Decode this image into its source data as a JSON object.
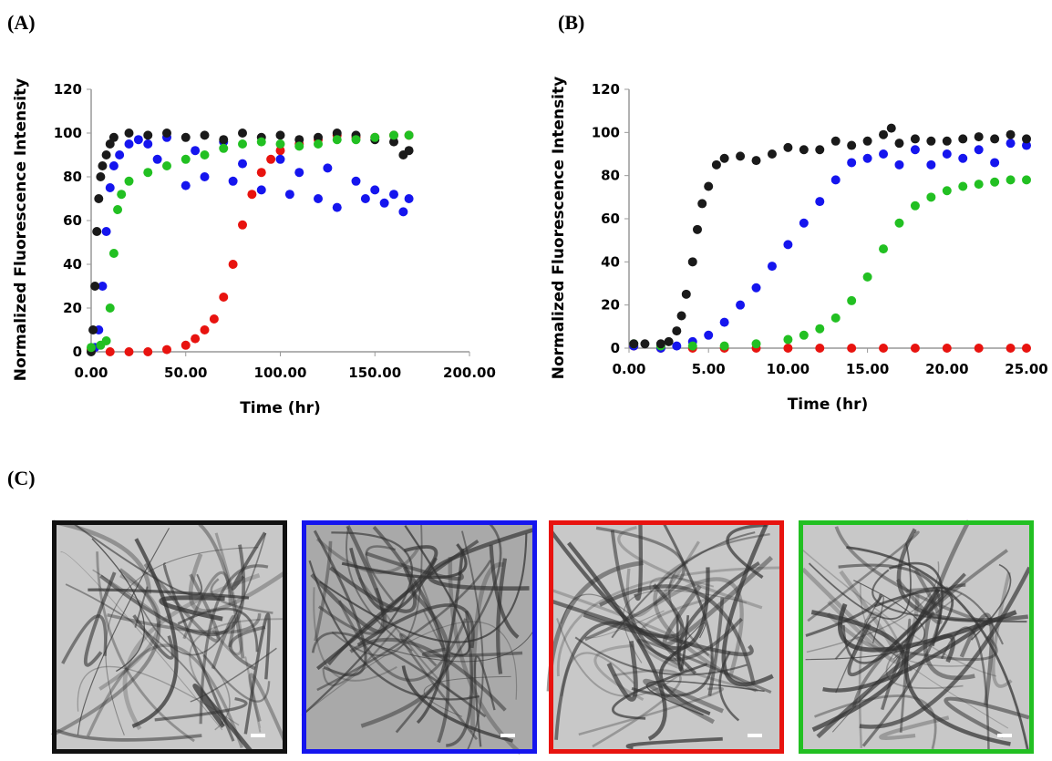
{
  "figure_labels": [
    "(A)",
    "(B)",
    "(C)"
  ],
  "chart_data": [
    {
      "type": "scatter",
      "xlabel": "Time (hr)",
      "ylabel": "Normalized Fluorescence Intensity",
      "xlim": [
        0,
        200
      ],
      "ylim": [
        0,
        120
      ],
      "xticks": [
        {
          "value": 0,
          "label": "0.00"
        },
        {
          "value": 50,
          "label": "50.00"
        },
        {
          "value": 100,
          "label": "100.00"
        },
        {
          "value": 150,
          "label": "150.00"
        },
        {
          "value": 200,
          "label": "200.00"
        }
      ],
      "yticks": [
        0,
        20,
        40,
        60,
        80,
        100,
        120
      ],
      "series": [
        {
          "color": "#e8130f",
          "x": [
            0,
            10,
            20,
            30,
            40,
            50,
            55,
            60,
            65,
            70,
            75,
            80,
            85,
            90,
            95,
            100,
            110,
            120,
            130,
            140,
            150,
            160,
            168
          ],
          "values": [
            1,
            0,
            0,
            0,
            1,
            3,
            6,
            10,
            15,
            25,
            40,
            58,
            72,
            82,
            88,
            92,
            95,
            97,
            99,
            98,
            98,
            99,
            99
          ]
        },
        {
          "color": "#1515ee",
          "x": [
            2,
            4,
            6,
            8,
            10,
            12,
            15,
            20,
            25,
            30,
            35,
            40,
            50,
            55,
            60,
            70,
            75,
            80,
            90,
            100,
            105,
            110,
            120,
            125,
            130,
            140,
            145,
            150,
            155,
            160,
            165,
            168
          ],
          "values": [
            2,
            10,
            30,
            55,
            75,
            85,
            90,
            95,
            97,
            95,
            88,
            98,
            76,
            92,
            80,
            96,
            78,
            86,
            74,
            88,
            72,
            82,
            70,
            84,
            66,
            78,
            70,
            74,
            68,
            72,
            64,
            70
          ]
        },
        {
          "color": "#1a1a1a",
          "x": [
            0,
            1,
            2,
            3,
            4,
            5,
            6,
            8,
            10,
            12,
            20,
            30,
            40,
            50,
            60,
            70,
            80,
            90,
            100,
            110,
            120,
            130,
            140,
            150,
            160,
            165,
            168
          ],
          "values": [
            0,
            10,
            30,
            55,
            70,
            80,
            85,
            90,
            95,
            98,
            100,
            99,
            100,
            98,
            99,
            97,
            100,
            98,
            99,
            97,
            98,
            100,
            99,
            97,
            96,
            90,
            92
          ]
        },
        {
          "color": "#22c022",
          "x": [
            0,
            5,
            8,
            10,
            12,
            14,
            16,
            20,
            30,
            40,
            50,
            60,
            70,
            80,
            90,
            100,
            110,
            120,
            130,
            140,
            150,
            160,
            168
          ],
          "values": [
            2,
            3,
            5,
            20,
            45,
            65,
            72,
            78,
            82,
            85,
            88,
            90,
            93,
            95,
            96,
            95,
            94,
            95,
            97,
            97,
            98,
            99,
            99
          ]
        }
      ]
    },
    {
      "type": "scatter",
      "xlabel": "Time (hr)",
      "ylabel": "Normalized Fluorescence Intensity",
      "xlim": [
        0,
        25
      ],
      "ylim": [
        0,
        120
      ],
      "xticks": [
        {
          "value": 0,
          "label": "0.00"
        },
        {
          "value": 5,
          "label": "5.00"
        },
        {
          "value": 10,
          "label": "10.00"
        },
        {
          "value": 15,
          "label": "15.00"
        },
        {
          "value": 20,
          "label": "20.00"
        },
        {
          "value": 25,
          "label": "25.00"
        }
      ],
      "yticks": [
        0,
        20,
        40,
        60,
        80,
        100,
        120
      ],
      "series": [
        {
          "color": "#e8130f",
          "x": [
            0.3,
            2,
            4,
            6,
            8,
            10,
            12,
            14,
            16,
            18,
            20,
            22,
            24,
            25
          ],
          "values": [
            1,
            0,
            0,
            0,
            0,
            0,
            0,
            0,
            0,
            0,
            0,
            0,
            0,
            0
          ]
        },
        {
          "color": "#1515ee",
          "x": [
            0.3,
            2,
            3,
            4,
            5,
            6,
            7,
            8,
            9,
            10,
            11,
            12,
            13,
            14,
            15,
            16,
            17,
            18,
            19,
            20,
            21,
            22,
            23,
            24,
            25
          ],
          "values": [
            1,
            0,
            1,
            3,
            6,
            12,
            20,
            28,
            38,
            48,
            58,
            68,
            78,
            86,
            88,
            90,
            85,
            92,
            85,
            90,
            88,
            92,
            86,
            95,
            94
          ]
        },
        {
          "color": "#22c022",
          "x": [
            0.3,
            2,
            4,
            6,
            8,
            10,
            11,
            12,
            13,
            14,
            15,
            16,
            17,
            18,
            19,
            20,
            21,
            22,
            23,
            24,
            25
          ],
          "values": [
            2,
            1,
            1,
            1,
            2,
            4,
            6,
            9,
            14,
            22,
            33,
            46,
            58,
            66,
            70,
            73,
            75,
            76,
            77,
            78,
            78
          ]
        },
        {
          "color": "#1a1a1a",
          "x": [
            0.3,
            1,
            2,
            2.5,
            3,
            3.3,
            3.6,
            4,
            4.3,
            4.6,
            5,
            5.5,
            6,
            7,
            8,
            9,
            10,
            11,
            12,
            13,
            14,
            15,
            16,
            16.5,
            17,
            18,
            19,
            20,
            21,
            22,
            23,
            24,
            25
          ],
          "values": [
            2,
            2,
            2,
            3,
            8,
            15,
            25,
            40,
            55,
            67,
            75,
            85,
            88,
            89,
            87,
            90,
            93,
            92,
            92,
            96,
            94,
            96,
            99,
            102,
            95,
            97,
            96,
            96,
            97,
            98,
            97,
            99,
            97
          ]
        }
      ]
    }
  ]
}
